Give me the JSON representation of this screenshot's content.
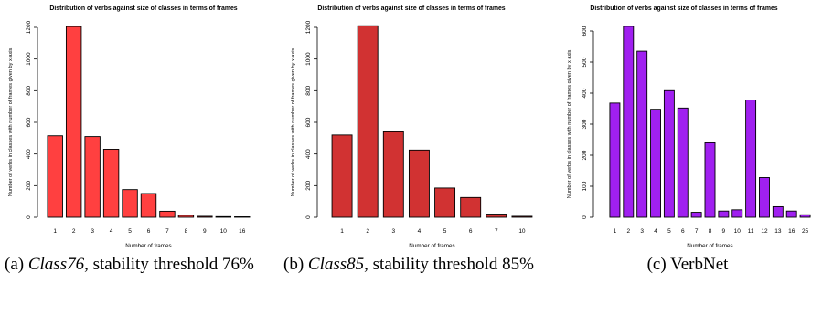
{
  "chart_data": [
    {
      "type": "bar",
      "title": "Distribution of verbs against size of classes in terms of frames",
      "xlabel": "Number of frames",
      "ylabel": "Number of verbs in classes with number of frames given by x axis",
      "categories": [
        "1",
        "2",
        "3",
        "4",
        "5",
        "6",
        "7",
        "8",
        "9",
        "10",
        "16"
      ],
      "values": [
        515,
        1205,
        510,
        430,
        175,
        150,
        38,
        12,
        6,
        4,
        3
      ],
      "ylim": [
        0,
        1200
      ],
      "yticks": [
        "0",
        "200",
        "400",
        "600",
        "800",
        "1000",
        "1200"
      ],
      "color": "#ff4040",
      "grid": false,
      "caption": {
        "label": "(a) ",
        "name": "Class76",
        "text": ", stability threshold 76%"
      }
    },
    {
      "type": "bar",
      "title": "Distribution of verbs against size of classes in terms of frames",
      "xlabel": "Number of frames",
      "ylabel": "Number of verbs in classes with number of frames given by x axis",
      "categories": [
        "1",
        "2",
        "3",
        "4",
        "5",
        "6",
        "7",
        "10"
      ],
      "values": [
        520,
        1210,
        540,
        425,
        185,
        125,
        20,
        6
      ],
      "ylim": [
        0,
        1200
      ],
      "yticks": [
        "0",
        "200",
        "400",
        "600",
        "800",
        "1000",
        "1200"
      ],
      "color": "#d13232",
      "grid": false,
      "caption": {
        "label": "(b) ",
        "name": "Class85",
        "text": ", stability threshold 85%"
      }
    },
    {
      "type": "bar",
      "title": "Distribution of verbs against size of classes in terms of frames",
      "xlabel": "Number of frames",
      "ylabel": "Number of verbs in classes with number of frames given by x axis",
      "categories": [
        "1",
        "2",
        "3",
        "4",
        "5",
        "6",
        "7",
        "8",
        "9",
        "10",
        "11",
        "12",
        "13",
        "16",
        "25"
      ],
      "values": [
        368,
        615,
        535,
        348,
        408,
        352,
        16,
        240,
        20,
        24,
        378,
        128,
        34,
        20,
        8
      ],
      "ylim": [
        0,
        600
      ],
      "yticks": [
        "0",
        "100",
        "200",
        "300",
        "400",
        "500",
        "600"
      ],
      "color": "#a020f0",
      "grid": false,
      "caption": {
        "label": "(c) ",
        "name": "",
        "text": "VerbNet"
      }
    }
  ]
}
